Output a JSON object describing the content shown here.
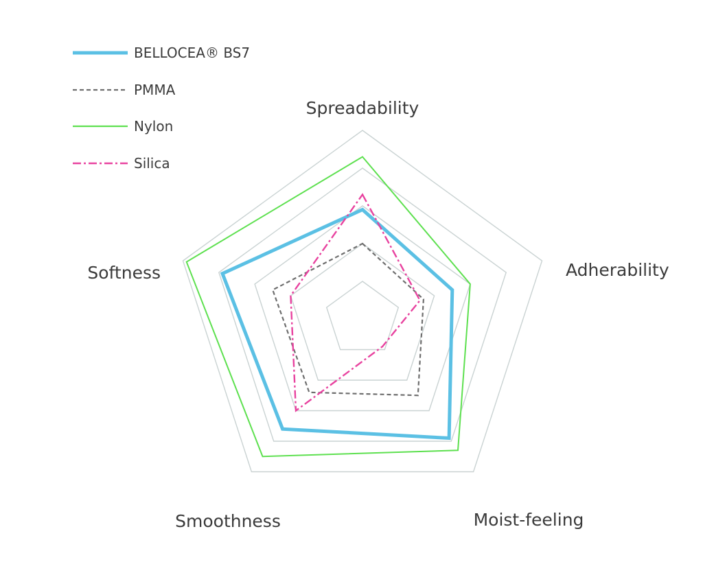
{
  "chart_data": {
    "type": "radar",
    "title": "",
    "axes": [
      "Spreadability",
      "Adherability",
      "Moist-feeling",
      "Smoothness",
      "Softness"
    ],
    "range": [
      0,
      5
    ],
    "grid": true,
    "legend_position": "top-left",
    "series": [
      {
        "name": "BELLOCEA® BS7",
        "values": [
          2.9,
          2.5,
          3.9,
          3.6,
          3.9
        ],
        "color": "#5bc0e4",
        "style": "solid-thick"
      },
      {
        "name": "PMMA",
        "values": [
          2.0,
          1.7,
          2.5,
          2.4,
          2.5
        ],
        "color": "#6e6e6e",
        "style": "dashed"
      },
      {
        "name": "Nylon",
        "values": [
          4.3,
          3.0,
          4.3,
          4.5,
          4.9
        ],
        "color": "#5de04f",
        "style": "solid"
      },
      {
        "name": "Silica",
        "values": [
          3.3,
          1.6,
          0.9,
          3.0,
          2.0
        ],
        "color": "#e8429f",
        "style": "dash-dot"
      }
    ]
  }
}
